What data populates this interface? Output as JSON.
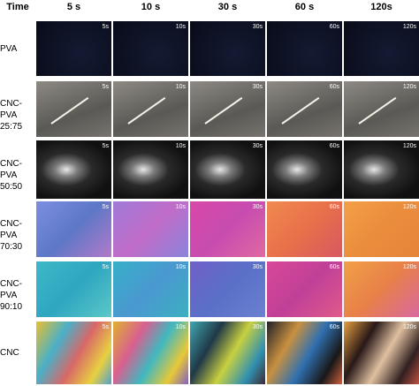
{
  "header": {
    "corner": "Time",
    "columns": [
      "5 s",
      "10 s",
      "30 s",
      "60 s",
      "120s"
    ]
  },
  "image_labels": [
    "5s",
    "10s",
    "30s",
    "60s",
    "120s"
  ],
  "rows": [
    {
      "label": [
        "PVA"
      ]
    },
    {
      "label": [
        "CNC-PVA",
        "25:75"
      ]
    },
    {
      "label": [
        "CNC-PVA",
        "50:50"
      ]
    },
    {
      "label": [
        "CNC-PVA",
        "70:30"
      ]
    },
    {
      "label": [
        "CNC-PVA",
        "90:10"
      ]
    },
    {
      "label": [
        "CNC"
      ]
    }
  ]
}
